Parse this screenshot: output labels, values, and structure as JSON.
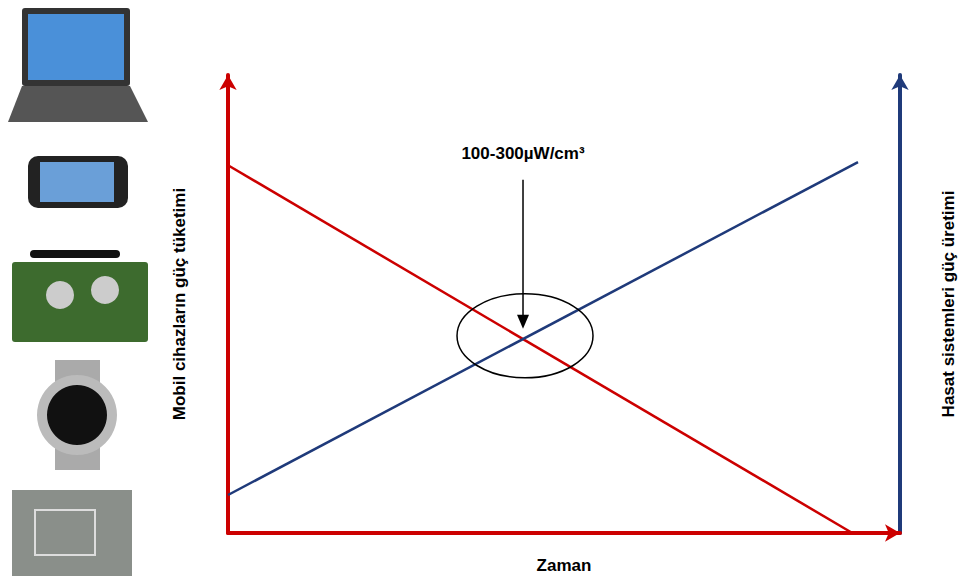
{
  "chart_data": {
    "type": "line",
    "xlabel": "Zaman",
    "ylabel": "Mobil cihazların güç tüketimi",
    "y2label": "Hasat sistemleri güç üretimi",
    "xlim": [
      0,
      10
    ],
    "ylim": [
      0,
      10
    ],
    "y2lim": [
      0,
      10
    ],
    "grid": false,
    "tick_labels": false,
    "series": [
      {
        "color": "#cc0000",
        "x": [
          0,
          9.29
        ],
        "values": [
          8.03,
          0
        ]
      },
      {
        "color": "#1f3a7a",
        "x": [
          0,
          9.375
        ],
        "values": [
          0.83,
          8.1
        ],
        "axis": "y2"
      }
    ],
    "annotations": [
      {
        "text": "100-300µW/cm³",
        "x": 4.39,
        "y": 4.24
      }
    ]
  }
}
